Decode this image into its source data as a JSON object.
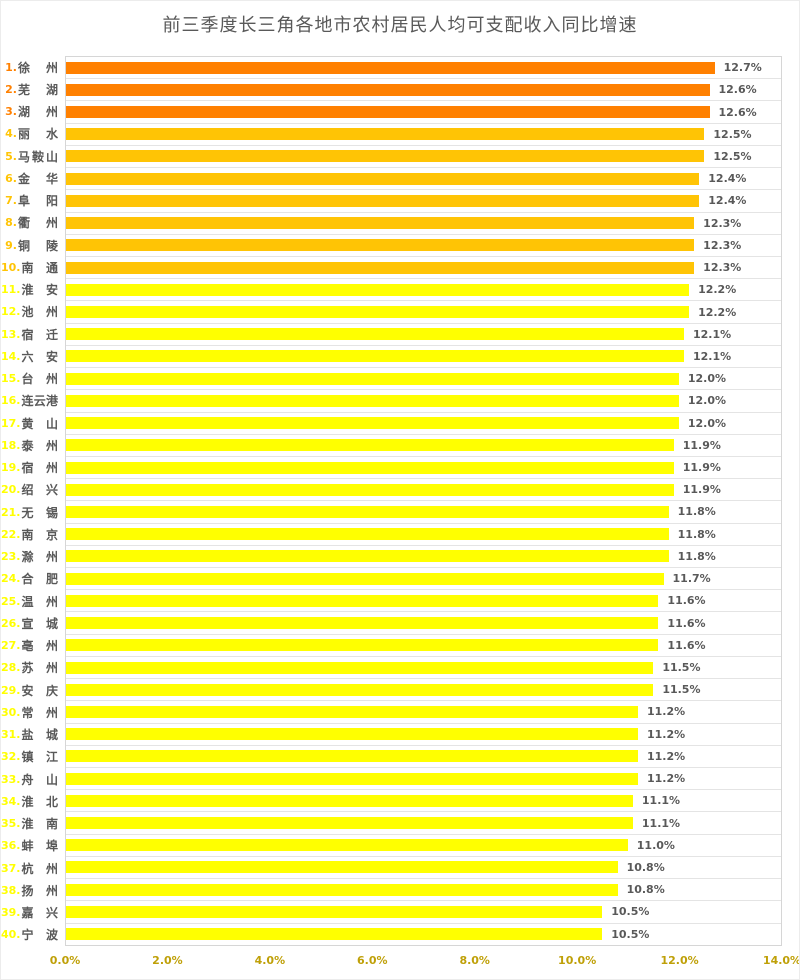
{
  "title": "前三季度长三角各地市农村居民人均可支配收入同比增速",
  "colors": {
    "orange": "#ff8000",
    "amber": "#ffc405",
    "yellow": "#ffff00",
    "label_text": "#595959",
    "value_text": "#595959",
    "tick_text": "#bfa008",
    "gridline": "#e4e4e4",
    "plot_border": "#d6d6d6"
  },
  "chart_data": {
    "type": "bar",
    "orientation": "horizontal",
    "title": "前三季度长三角各地市农村居民人均可支配收入同比增速",
    "xlabel": "",
    "ylabel": "",
    "xlim": [
      0,
      14
    ],
    "grid": "category-separators",
    "legend": "none",
    "x_ticks": [
      "0.0%",
      "2.0%",
      "4.0%",
      "6.0%",
      "8.0%",
      "10.0%",
      "12.0%",
      "14.0%"
    ],
    "bars": [
      {
        "rank": "1",
        "city": "徐州",
        "value": 12.7,
        "label": "12.7%",
        "color_key": "orange"
      },
      {
        "rank": "2",
        "city": "芜湖",
        "value": 12.6,
        "label": "12.6%",
        "color_key": "orange"
      },
      {
        "rank": "3",
        "city": "湖州",
        "value": 12.6,
        "label": "12.6%",
        "color_key": "orange"
      },
      {
        "rank": "4",
        "city": "丽水",
        "value": 12.5,
        "label": "12.5%",
        "color_key": "amber"
      },
      {
        "rank": "5",
        "city": "马鞍山",
        "value": 12.5,
        "label": "12.5%",
        "color_key": "amber"
      },
      {
        "rank": "6",
        "city": "金华",
        "value": 12.4,
        "label": "12.4%",
        "color_key": "amber"
      },
      {
        "rank": "7",
        "city": "阜阳",
        "value": 12.4,
        "label": "12.4%",
        "color_key": "amber"
      },
      {
        "rank": "8",
        "city": "衢州",
        "value": 12.3,
        "label": "12.3%",
        "color_key": "amber"
      },
      {
        "rank": "9",
        "city": "铜陵",
        "value": 12.3,
        "label": "12.3%",
        "color_key": "amber"
      },
      {
        "rank": "10",
        "city": "南通",
        "value": 12.3,
        "label": "12.3%",
        "color_key": "amber"
      },
      {
        "rank": "11",
        "city": "淮安",
        "value": 12.2,
        "label": "12.2%",
        "color_key": "yellow"
      },
      {
        "rank": "12",
        "city": "池州",
        "value": 12.2,
        "label": "12.2%",
        "color_key": "yellow"
      },
      {
        "rank": "13",
        "city": "宿迁",
        "value": 12.1,
        "label": "12.1%",
        "color_key": "yellow"
      },
      {
        "rank": "14",
        "city": "六安",
        "value": 12.1,
        "label": "12.1%",
        "color_key": "yellow"
      },
      {
        "rank": "15",
        "city": "台州",
        "value": 12.0,
        "label": "12.0%",
        "color_key": "yellow"
      },
      {
        "rank": "16",
        "city": "连云港",
        "value": 12.0,
        "label": "12.0%",
        "color_key": "yellow"
      },
      {
        "rank": "17",
        "city": "黄山",
        "value": 12.0,
        "label": "12.0%",
        "color_key": "yellow"
      },
      {
        "rank": "18",
        "city": "泰州",
        "value": 11.9,
        "label": "11.9%",
        "color_key": "yellow"
      },
      {
        "rank": "19",
        "city": "宿州",
        "value": 11.9,
        "label": "11.9%",
        "color_key": "yellow"
      },
      {
        "rank": "20",
        "city": "绍兴",
        "value": 11.9,
        "label": "11.9%",
        "color_key": "yellow"
      },
      {
        "rank": "21",
        "city": "无锡",
        "value": 11.8,
        "label": "11.8%",
        "color_key": "yellow"
      },
      {
        "rank": "22",
        "city": "南京",
        "value": 11.8,
        "label": "11.8%",
        "color_key": "yellow"
      },
      {
        "rank": "23",
        "city": "滁州",
        "value": 11.8,
        "label": "11.8%",
        "color_key": "yellow"
      },
      {
        "rank": "24",
        "city": "合肥",
        "value": 11.7,
        "label": "11.7%",
        "color_key": "yellow"
      },
      {
        "rank": "25",
        "city": "温州",
        "value": 11.6,
        "label": "11.6%",
        "color_key": "yellow"
      },
      {
        "rank": "26",
        "city": "宣城",
        "value": 11.6,
        "label": "11.6%",
        "color_key": "yellow"
      },
      {
        "rank": "27",
        "city": "亳州",
        "value": 11.6,
        "label": "11.6%",
        "color_key": "yellow"
      },
      {
        "rank": "28",
        "city": "苏州",
        "value": 11.5,
        "label": "11.5%",
        "color_key": "yellow"
      },
      {
        "rank": "29",
        "city": "安庆",
        "value": 11.5,
        "label": "11.5%",
        "color_key": "yellow"
      },
      {
        "rank": "30",
        "city": "常州",
        "value": 11.2,
        "label": "11.2%",
        "color_key": "yellow"
      },
      {
        "rank": "31",
        "city": "盐城",
        "value": 11.2,
        "label": "11.2%",
        "color_key": "yellow"
      },
      {
        "rank": "32",
        "city": "镇江",
        "value": 11.2,
        "label": "11.2%",
        "color_key": "yellow"
      },
      {
        "rank": "33",
        "city": "舟山",
        "value": 11.2,
        "label": "11.2%",
        "color_key": "yellow"
      },
      {
        "rank": "34",
        "city": "淮北",
        "value": 11.1,
        "label": "11.1%",
        "color_key": "yellow"
      },
      {
        "rank": "35",
        "city": "淮南",
        "value": 11.1,
        "label": "11.1%",
        "color_key": "yellow"
      },
      {
        "rank": "36",
        "city": "蚌埠",
        "value": 11.0,
        "label": "11.0%",
        "color_key": "yellow"
      },
      {
        "rank": "37",
        "city": "杭州",
        "value": 10.8,
        "label": "10.8%",
        "color_key": "yellow"
      },
      {
        "rank": "38",
        "city": "扬州",
        "value": 10.8,
        "label": "10.8%",
        "color_key": "yellow"
      },
      {
        "rank": "39",
        "city": "嘉兴",
        "value": 10.5,
        "label": "10.5%",
        "color_key": "yellow"
      },
      {
        "rank": "40",
        "city": "宁波",
        "value": 10.5,
        "label": "10.5%",
        "color_key": "yellow"
      }
    ]
  }
}
